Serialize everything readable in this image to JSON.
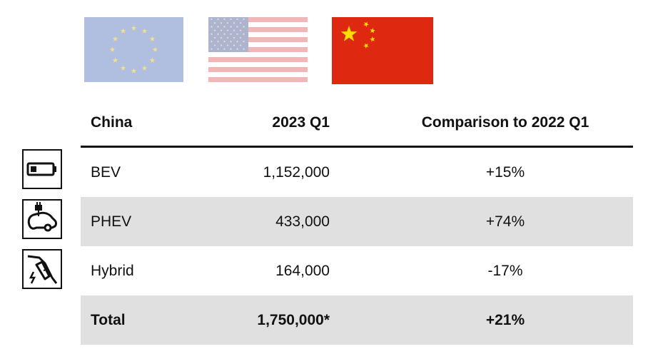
{
  "flags": [
    {
      "name": "eu-flag-icon",
      "faded": true
    },
    {
      "name": "us-flag-icon",
      "faded": true
    },
    {
      "name": "china-flag-icon",
      "faded": false
    }
  ],
  "colors": {
    "eu_blue_faded": "#b0bfe0",
    "eu_star": "#f2e08a",
    "us_red_faded": "#f0b6b8",
    "us_blue_faded": "#aeb4cc",
    "cn_red": "#de2910",
    "cn_star": "#ffde00",
    "row_shade": "#e0e0e0"
  },
  "table": {
    "headers": [
      "China",
      "2023 Q1",
      "Comparison to 2022 Q1"
    ],
    "rows": [
      {
        "icon": "battery-icon",
        "label": "BEV",
        "value": "1,152,000",
        "change": "+15%"
      },
      {
        "icon": "plug-in-car-icon",
        "label": "PHEV",
        "value": "433,000",
        "change": "+74%"
      },
      {
        "icon": "fuel-nozzle-electric-icon",
        "label": "Hybrid",
        "value": "164,000",
        "change": "-17%"
      }
    ],
    "total": {
      "label": "Total",
      "value": "1,750,000*",
      "change": "+21%"
    }
  }
}
